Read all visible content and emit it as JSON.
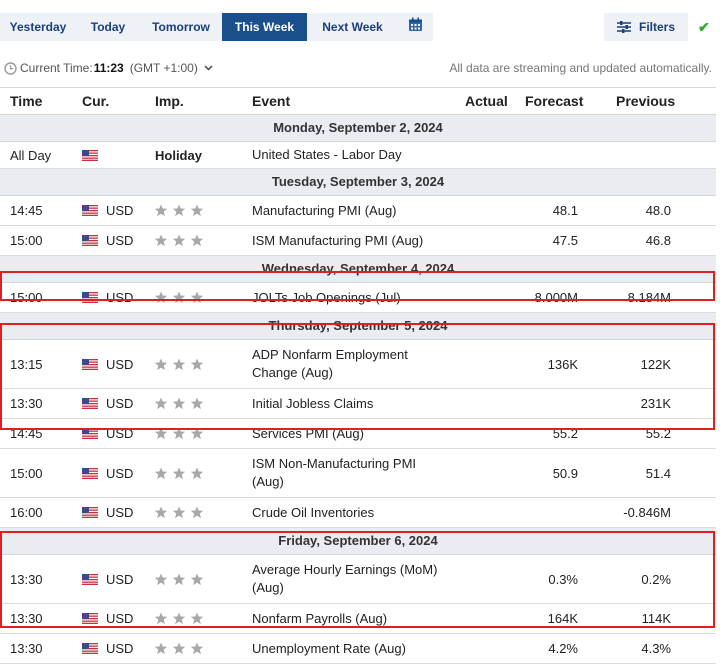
{
  "tabs": [
    {
      "id": "yesterday",
      "label": "Yesterday",
      "active": false
    },
    {
      "id": "today",
      "label": "Today",
      "active": false
    },
    {
      "id": "tomorrow",
      "label": "Tomorrow",
      "active": false
    },
    {
      "id": "this-week",
      "label": "This Week",
      "active": true
    },
    {
      "id": "next-week",
      "label": "Next Week",
      "active": false
    }
  ],
  "toolbar": {
    "calendar_icon": "calendar-icon",
    "filters_label": "Filters",
    "filters_icon": "sliders-icon",
    "check_icon": "checkmark-icon",
    "check_color": "#2eaa2e"
  },
  "time_bar": {
    "label": "Current Time:",
    "time": "11:23",
    "timezone": "(GMT +1:00)",
    "notice": "All data are streaming and updated automatically."
  },
  "columns": {
    "time": "Time",
    "currency": "Cur.",
    "importance": "Imp.",
    "event": "Event",
    "actual": "Actual",
    "forecast": "Forecast",
    "previous": "Previous"
  },
  "days": [
    {
      "date": "Monday, September 2, 2024",
      "events": [
        {
          "time": "All Day",
          "currency": "",
          "importance": "Holiday",
          "stars": 0,
          "event": "United States - Labor Day",
          "actual": "",
          "forecast": "",
          "previous": ""
        }
      ]
    },
    {
      "date": "Tuesday, September 3, 2024",
      "events": [
        {
          "time": "14:45",
          "currency": "USD",
          "stars": 3,
          "event": "Manufacturing PMI (Aug)",
          "actual": "",
          "forecast": "48.1",
          "previous": "48.0"
        },
        {
          "time": "15:00",
          "currency": "USD",
          "stars": 3,
          "event": "ISM Manufacturing PMI (Aug)",
          "actual": "",
          "forecast": "47.5",
          "previous": "46.8"
        }
      ]
    },
    {
      "date": "Wednesday, September 4, 2024",
      "events": [
        {
          "time": "15:00",
          "currency": "USD",
          "stars": 3,
          "event": "JOLTs Job Openings (Jul)",
          "actual": "",
          "forecast": "8.000M",
          "previous": "8.184M"
        }
      ]
    },
    {
      "date": "Thursday, September 5, 2024",
      "events": [
        {
          "time": "13:15",
          "currency": "USD",
          "stars": 3,
          "event": "ADP Nonfarm Employment Change (Aug)",
          "actual": "",
          "forecast": "136K",
          "previous": "122K"
        },
        {
          "time": "13:30",
          "currency": "USD",
          "stars": 3,
          "event": "Initial Jobless Claims",
          "actual": "",
          "forecast": "",
          "previous": "231K"
        },
        {
          "time": "14:45",
          "currency": "USD",
          "stars": 3,
          "event": "Services PMI (Aug)",
          "actual": "",
          "forecast": "55.2",
          "previous": "55.2"
        },
        {
          "time": "15:00",
          "currency": "USD",
          "stars": 3,
          "event": "ISM Non-Manufacturing PMI (Aug)",
          "actual": "",
          "forecast": "50.9",
          "previous": "51.4"
        },
        {
          "time": "16:00",
          "currency": "USD",
          "stars": 3,
          "event": "Crude Oil Inventories",
          "actual": "",
          "forecast": "",
          "previous": "-0.846M"
        }
      ]
    },
    {
      "date": "Friday, September 6, 2024",
      "events": [
        {
          "time": "13:30",
          "currency": "USD",
          "stars": 3,
          "event": "Average Hourly Earnings (MoM) (Aug)",
          "actual": "",
          "forecast": "0.3%",
          "previous": "0.2%"
        },
        {
          "time": "13:30",
          "currency": "USD",
          "stars": 3,
          "event": "Nonfarm Payrolls (Aug)",
          "actual": "",
          "forecast": "164K",
          "previous": "114K"
        },
        {
          "time": "13:30",
          "currency": "USD",
          "stars": 3,
          "event": "Unemployment Rate (Aug)",
          "actual": "",
          "forecast": "4.2%",
          "previous": "4.3%"
        }
      ]
    }
  ],
  "flag_icon": "us-flag-icon",
  "star_icon": "star-icon",
  "star_color": "#a8a8a8",
  "highlight_color": "#e02020"
}
